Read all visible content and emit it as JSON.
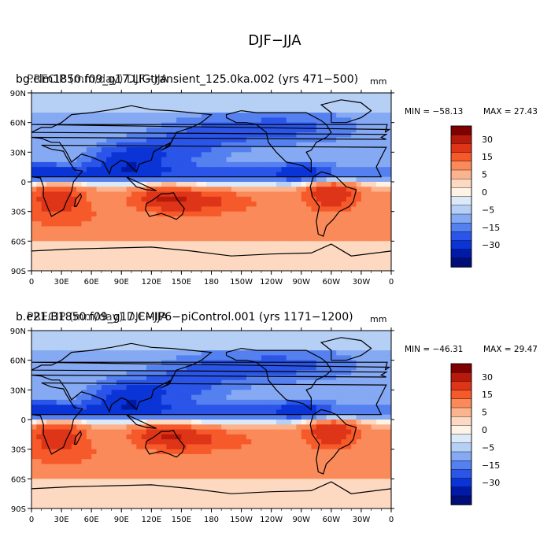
{
  "figure_title": "DJF−JJA",
  "colorbar_colors": [
    "#7f0000",
    "#b51a0a",
    "#de3418",
    "#f75a2a",
    "#fb8a5b",
    "#fcb48e",
    "#fdd9c2",
    "#fff3e6",
    "#dce9f8",
    "#b5cff5",
    "#85a9f2",
    "#5580f0",
    "#2a55e8",
    "#0a34d6",
    "#001aa8",
    "#000e7a"
  ],
  "colorbar_labels": [
    "30",
    "15",
    "5",
    "0",
    "−5",
    "−15",
    "−30"
  ],
  "chart_data": [
    {
      "type": "heatmap",
      "title_line1": "bg.clm1850.f09_g17.LIGtransient_125.0ka.002 (yrs 471−500)",
      "title_line2": "PRECIP (mm/day) DJF−JJA",
      "units": "mm",
      "variable": "Precipitation difference DJF minus JJA",
      "min_text": "MIN = −58.13",
      "max_text": "MAX =  27.43",
      "min": -58.13,
      "max": 27.43,
      "contour_levels": [
        -30,
        -15,
        -5,
        0,
        5,
        15,
        30
      ],
      "x_ticks": [
        "0",
        "30E",
        "60E",
        "90E",
        "120E",
        "150E",
        "180",
        "150W",
        "120W",
        "90W",
        "60W",
        "30W",
        "0"
      ],
      "y_ticks": [
        "90N",
        "60N",
        "30N",
        "0",
        "30S",
        "60S",
        "90S"
      ],
      "xlim": [
        0,
        360
      ],
      "ylim": [
        -90,
        90
      ]
    },
    {
      "type": "heatmap",
      "title_line1": "b.e21.B1850.f09_g17.CMIP6−piControl.001 (yrs 1171−1200)",
      "title_line2": "PRECIP (mm/day) DJF−JJA",
      "units": "mm",
      "variable": "Precipitation difference DJF minus JJA",
      "min_text": "MIN = −46.31",
      "max_text": "MAX =  29.47",
      "min": -46.31,
      "max": 29.47,
      "contour_levels": [
        -30,
        -15,
        -5,
        0,
        5,
        15,
        30
      ],
      "x_ticks": [
        "0",
        "30E",
        "60E",
        "90E",
        "120E",
        "150E",
        "180",
        "150W",
        "120W",
        "90W",
        "60W",
        "30W",
        "0"
      ],
      "y_ticks": [
        "90N",
        "60N",
        "30N",
        "0",
        "30S",
        "60S",
        "90S"
      ],
      "xlim": [
        0,
        360
      ],
      "ylim": [
        -90,
        90
      ]
    }
  ]
}
